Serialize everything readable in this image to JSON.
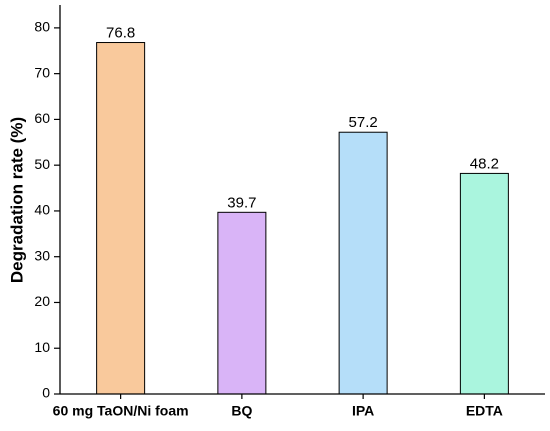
{
  "chart_data": {
    "type": "bar",
    "y_label": "Degradation rate (%)",
    "categories": [
      "60 mg TaON/Ni foam",
      "BQ",
      "IPA",
      "EDTA"
    ],
    "values": [
      76.8,
      39.7,
      57.2,
      48.2
    ],
    "colors": [
      "#f9c99c",
      "#d9b4f7",
      "#b5def9",
      "#aaf5de"
    ],
    "ylim": [
      0,
      85
    ],
    "yticks": [
      0,
      10,
      20,
      30,
      40,
      50,
      60,
      70,
      80
    ],
    "grid": false
  }
}
